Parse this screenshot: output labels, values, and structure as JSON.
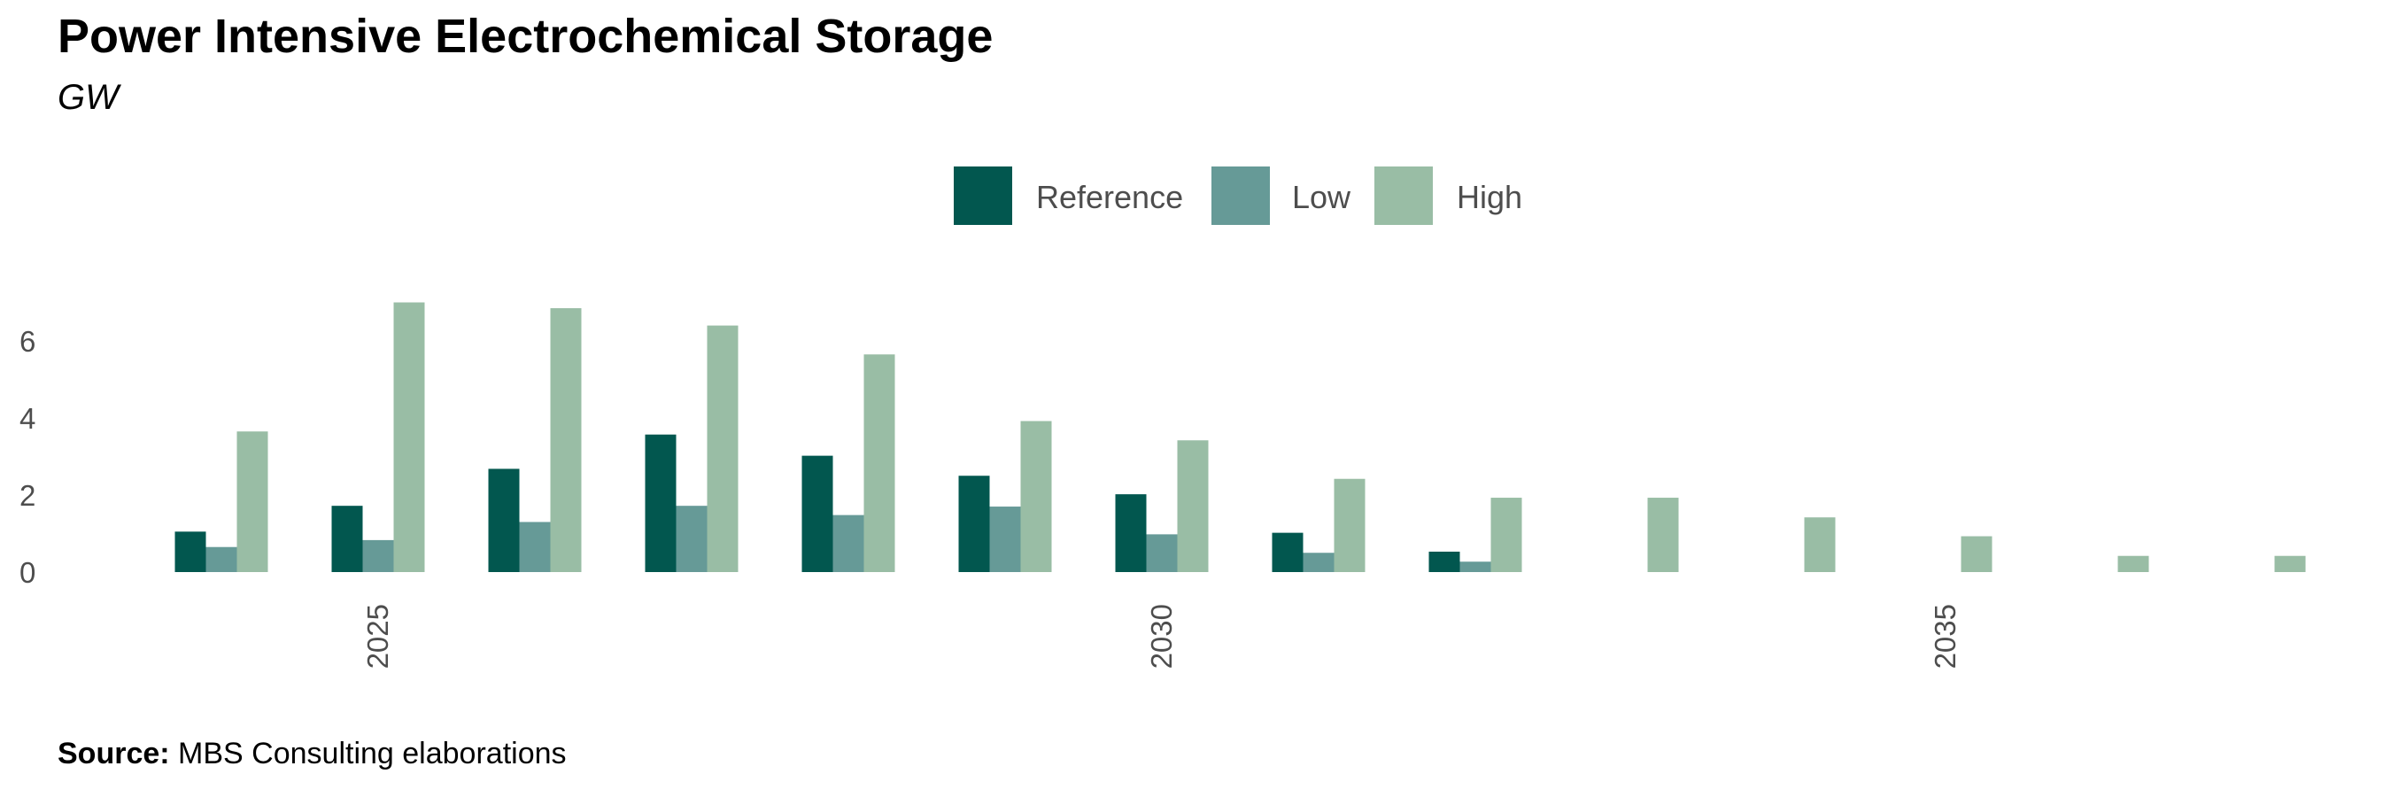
{
  "title": "Power Intensive Electrochemical Storage",
  "subtitle": "GW",
  "source": {
    "label": "Source:",
    "text": "MBS Consulting elaborations"
  },
  "colors": {
    "Reference": "#02574f",
    "Low": "#669a97",
    "High": "#99bda5"
  },
  "chart_data": {
    "type": "bar",
    "x": [
      2024,
      2025,
      2026,
      2027,
      2028,
      2029,
      2030,
      2031,
      2032,
      2033,
      2034,
      2035,
      2036,
      2037
    ],
    "x_tick_labels": [
      "2025",
      "2030",
      "2035"
    ],
    "x_ticks": [
      2025,
      2030,
      2035
    ],
    "y_ticks": [
      0,
      2,
      4,
      6
    ],
    "ylim": [
      0,
      7.1
    ],
    "grid": false,
    "legend_position": "top",
    "series": [
      {
        "name": "Reference",
        "values": [
          1.05,
          1.72,
          2.68,
          3.57,
          3.02,
          2.5,
          2.02,
          1.02,
          0.53,
          0,
          0,
          0,
          0,
          0
        ]
      },
      {
        "name": "Low",
        "values": [
          0.65,
          0.83,
          1.3,
          1.72,
          1.48,
          1.7,
          0.98,
          0.5,
          0.27,
          0,
          0,
          0,
          0,
          0
        ]
      },
      {
        "name": "High",
        "values": [
          3.65,
          7.0,
          6.85,
          6.4,
          5.65,
          3.92,
          3.42,
          2.42,
          1.93,
          1.93,
          1.42,
          0.93,
          0.42,
          0.42
        ]
      }
    ]
  }
}
